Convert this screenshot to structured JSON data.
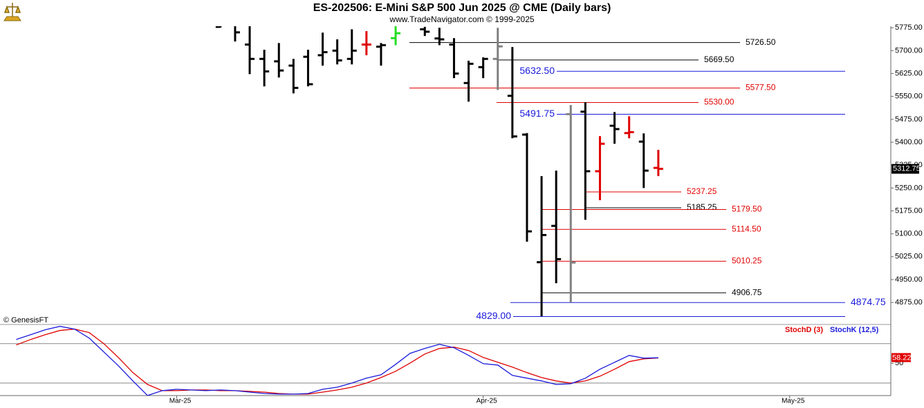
{
  "chart_data": [
    {
      "type": "ohlc",
      "title": "ES-202506:  E-Mini S&P 500 Jun 2025 @ CME  (Daily bars)",
      "subtitle": "www.TradeNavigator.com © 1999-2025",
      "note": "© GenesisFT",
      "x": [
        3,
        4,
        5,
        6,
        7,
        8,
        9,
        10,
        11,
        12,
        13,
        14,
        15,
        17,
        18,
        19,
        20,
        21,
        22,
        23,
        24,
        25,
        26,
        27,
        28,
        29,
        30,
        31,
        32,
        33
      ],
      "open": [
        5778,
        5790,
        5720,
        5673,
        5665,
        5651,
        5680,
        5685,
        5700,
        5673,
        5720,
        5713,
        5741,
        5770,
        5740,
        5720,
        5594,
        5646,
        5673,
        5552,
        5425,
        5007,
        5126,
        5492,
        5500,
        5305,
        5454,
        5430,
        5402,
        5316
      ],
      "high": [
        5800,
        5800,
        5800,
        5703,
        5725,
        5673,
        5703,
        5759,
        5737,
        5770,
        5764,
        5725,
        5780,
        5778,
        5775,
        5741,
        5667,
        5678,
        5775,
        5712,
        5430,
        5289,
        5307,
        5522,
        5531,
        5420,
        5499,
        5485,
        5429,
        5375
      ],
      "low": [
        5776,
        5730,
        5623,
        5583,
        5612,
        5560,
        5583,
        5651,
        5655,
        5655,
        5685,
        5651,
        5718,
        5748,
        5718,
        5610,
        5533,
        5610,
        5571,
        5413,
        5074,
        4830,
        4938,
        4875,
        5146,
        5210,
        5395,
        5413,
        5250,
        5289
      ],
      "close": [
        5790,
        5760,
        5673,
        5632,
        5635,
        5578,
        5590,
        5695,
        5668,
        5700,
        5720,
        5718,
        5757,
        5762,
        5737,
        5625,
        5657,
        5673,
        5714,
        5419,
        5108,
        5096,
        5017,
        5006,
        5305,
        5395,
        5443,
        5433,
        5307,
        5312.75
      ],
      "colors": [
        "#000",
        "#000",
        "#000",
        "#000",
        "#000",
        "#000",
        "#000",
        "#000",
        "#000",
        "#000",
        "#e00000",
        "#000",
        "#22dd22",
        "#000",
        "#000",
        "#000",
        "#000",
        "#000",
        "#808080",
        "#000",
        "#000",
        "#000",
        "#000",
        "#808080",
        "#000",
        "#e00000",
        "#000",
        "#e00000",
        "#000",
        "#e00000"
      ],
      "xlim": [
        -12.11,
        48.93
      ],
      "ylim": [
        4803,
        5780
      ],
      "yticks": [
        {
          "value": 5775,
          "label": "5775.00"
        },
        {
          "value": 5700,
          "label": "5700.00"
        },
        {
          "value": 5625,
          "label": "5625.00"
        },
        {
          "value": 5550,
          "label": "5550.00"
        },
        {
          "value": 5475,
          "label": "5475.00"
        },
        {
          "value": 5400,
          "label": "5400.00"
        },
        {
          "value": 5325,
          "label": "5325.00"
        },
        {
          "value": 5250,
          "label": "5250.00"
        },
        {
          "value": 5175,
          "label": "5175.00"
        },
        {
          "value": 5100,
          "label": "5100.00"
        },
        {
          "value": 5025,
          "label": "5025.00"
        },
        {
          "value": 4950,
          "label": "4950.00"
        },
        {
          "value": 4875,
          "label": "4875.00"
        }
      ],
      "levels": [
        {
          "value": 5726.5,
          "label": "5726.50",
          "color": "#000000"
        },
        {
          "value": 5669.5,
          "label": "5669.50",
          "color": "#000000"
        },
        {
          "value": 5632.5,
          "label": "5632.50",
          "color": "#1a1adb"
        },
        {
          "value": 5577.5,
          "label": "5577.50",
          "color": "#e00000"
        },
        {
          "value": 5530,
          "label": "5530.00",
          "color": "#e00000"
        },
        {
          "value": 5491.75,
          "label": "5491.75",
          "color": "#1a1adb"
        },
        {
          "value": 5237.25,
          "label": "5237.25",
          "color": "#e00000"
        },
        {
          "value": 5185.25,
          "label": "5185.25",
          "color": "#000000"
        },
        {
          "value": 5179.5,
          "label": "5179.50",
          "color": "#e00000"
        },
        {
          "value": 5114.5,
          "label": "5114.50",
          "color": "#e00000"
        },
        {
          "value": 5010.25,
          "label": "5010.25",
          "color": "#e00000"
        },
        {
          "value": 4906.75,
          "label": "4906.75",
          "color": "#000000"
        },
        {
          "value": 4874.75,
          "label": "4874.75",
          "color": "#1a1adb"
        },
        {
          "value": 4829,
          "label": "4829.00",
          "color": "#1a1adb"
        }
      ]
    },
    {
      "type": "line",
      "x": [
        -11,
        -10,
        -9,
        -8,
        -7,
        -6,
        -5,
        -4,
        -3,
        -2,
        -1,
        0,
        1,
        2,
        3,
        4,
        5,
        6,
        7,
        8,
        9,
        10,
        11,
        12,
        13,
        14,
        15,
        16,
        17,
        18,
        19,
        20,
        21,
        22,
        23,
        24,
        25,
        26,
        27,
        28,
        29,
        30,
        31,
        32,
        33
      ],
      "series": [
        {
          "name": "StochD (3)",
          "color": "#e00000",
          "values": [
            77.9,
            86.3,
            93.7,
            100,
            102.1,
            96.8,
            80,
            58.9,
            35.8,
            17.9,
            8.4,
            8.4,
            9.5,
            9.5,
            8.4,
            8.4,
            7.4,
            6.3,
            4.2,
            3.2,
            3.2,
            6.3,
            9.5,
            13.7,
            20,
            28.4,
            37.9,
            50.5,
            64.2,
            72.6,
            74.7,
            69.5,
            58.9,
            51.6,
            44.2,
            35.8,
            28.4,
            23.2,
            20,
            23.2,
            30.5,
            41.1,
            52.6,
            56.8,
            58.22
          ]
        },
        {
          "name": "StochK (12,5)",
          "color": "#1a1adb",
          "values": [
            86.3,
            93.7,
            101.1,
            106.3,
            102.1,
            88.4,
            67.4,
            46.3,
            23.2,
            1.1,
            8.4,
            10.5,
            9.5,
            8.4,
            9.5,
            8.4,
            6.3,
            4.2,
            3.2,
            3.2,
            4.2,
            10.5,
            13.7,
            20,
            27.4,
            32.6,
            48.4,
            65.3,
            72.6,
            78.9,
            73.7,
            62.1,
            49.5,
            47.4,
            31.6,
            27.4,
            23.2,
            17.9,
            18.9,
            27.4,
            41.1,
            51.6,
            62.1,
            57.9,
            58.5
          ]
        }
      ],
      "xlim": [
        -12.11,
        48.93
      ],
      "xticks": [
        {
          "value": 0,
          "label": "Mar-25"
        },
        {
          "value": 21,
          "label": "Apr-25"
        },
        {
          "value": 42,
          "label": "May-25"
        }
      ],
      "ylim": [
        1,
        107
      ],
      "yticks": [
        50
      ],
      "hlines": [
        80,
        20
      ]
    }
  ]
}
